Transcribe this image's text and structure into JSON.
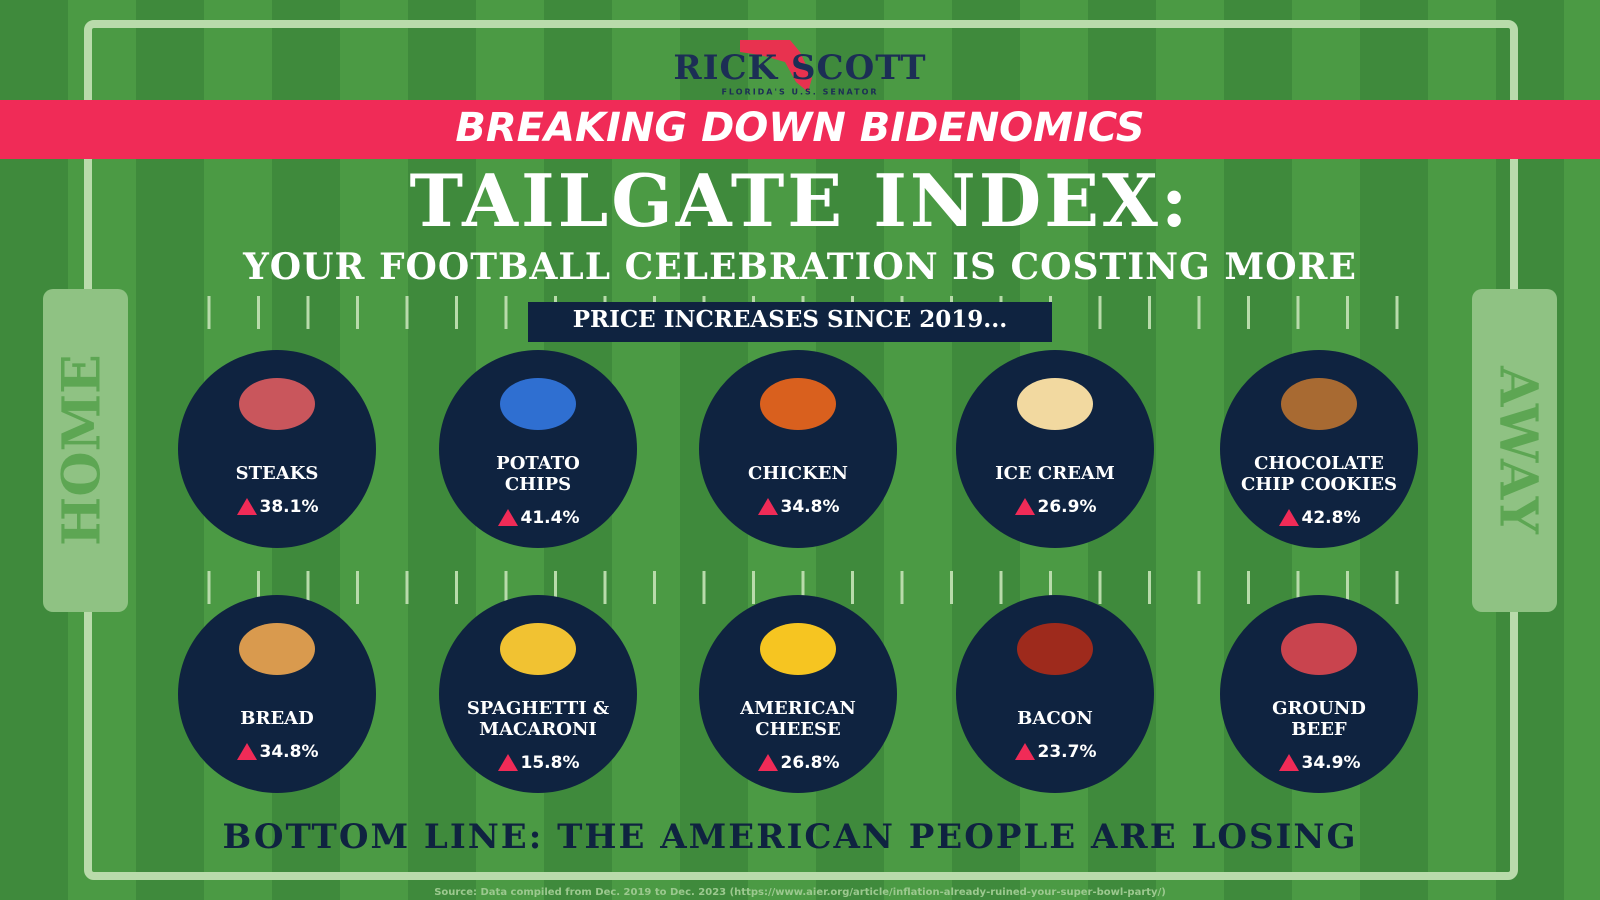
{
  "header": {
    "logo": "RICK SCOTT",
    "logo_subtitle": "FLORIDA'S U.S. SENATOR",
    "banner": "BREAKING DOWN BIDENOMICS",
    "title": "TAILGATE INDEX:",
    "subtitle": "YOUR FOOTBALL CELEBRATION IS COSTING MORE",
    "section_label": "PRICE INCREASES SINCE 2019..."
  },
  "field": {
    "left_endzone": "HOME",
    "right_endzone": "AWAY"
  },
  "items": [
    {
      "name_lines": [
        "STEAKS"
      ],
      "change": "38.1%"
    },
    {
      "name_lines": [
        "POTATO",
        "CHIPS"
      ],
      "change": "41.4%"
    },
    {
      "name_lines": [
        "CHICKEN"
      ],
      "change": "34.8%"
    },
    {
      "name_lines": [
        "ICE CREAM"
      ],
      "change": "26.9%"
    },
    {
      "name_lines": [
        "CHOCOLATE",
        "CHIP COOKIES"
      ],
      "change": "42.8%"
    },
    {
      "name_lines": [
        "BREAD"
      ],
      "change": "34.8%"
    },
    {
      "name_lines": [
        "SPAGHETTI &",
        "MACARONI"
      ],
      "change": "15.8%"
    },
    {
      "name_lines": [
        "AMERICAN",
        "CHEESE"
      ],
      "change": "26.8%"
    },
    {
      "name_lines": [
        "BACON"
      ],
      "change": "23.7%"
    },
    {
      "name_lines": [
        "GROUND",
        "BEEF"
      ],
      "change": "34.9%"
    }
  ],
  "footer": {
    "bottom_line": "BOTTOM LINE: THE AMERICAN PEOPLE ARE LOSING",
    "source": "Source: Data compiled from Dec. 2019 to Dec. 2023 (https://www.aier.org/article/inflation-already-ruined-your-super-bowl-party/)"
  }
}
